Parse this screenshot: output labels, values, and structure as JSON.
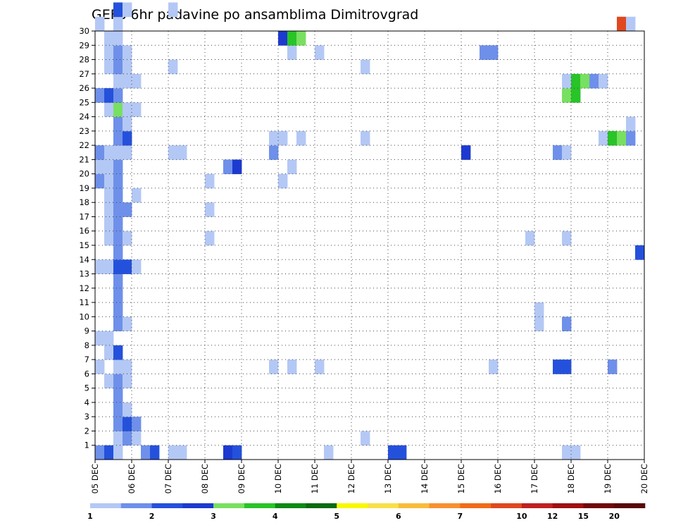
{
  "chart_data": {
    "type": "heatmap",
    "title": "GEFS 6hr padavine po ansamblima Dimitrovgrad",
    "y_ticks": [
      "1",
      "2",
      "3",
      "4",
      "5",
      "6",
      "7",
      "8",
      "9",
      "10",
      "11",
      "12",
      "13",
      "14",
      "15",
      "16",
      "17",
      "18",
      "19",
      "20",
      "21",
      "22",
      "23",
      "24",
      "25",
      "26",
      "27",
      "28",
      "29",
      "30"
    ],
    "x_ticks": [
      "05 DEC",
      "06 DEC",
      "07 DEC",
      "08 DEC",
      "09 DEC",
      "10 DEC",
      "11 DEC",
      "12 DEC",
      "13 DEC",
      "14 DEC",
      "15 DEC",
      "16 DEC",
      "17 DEC",
      "18 DEC",
      "19 DEC",
      "20 DEC"
    ],
    "x_steps_per_day": 4,
    "colorbar": {
      "colors": [
        "#b4c8f5",
        "#6e90ea",
        "#2451dc",
        "#1c3ad0",
        "#78e060",
        "#28c428",
        "#0d8a14",
        "#0b6a10",
        "#f8f800",
        "#f8e048",
        "#f8bc3c",
        "#f89030",
        "#f06c18",
        "#e04820",
        "#c02020",
        "#a01010",
        "#700808",
        "#580808"
      ],
      "labels": [
        "1",
        "2",
        "3",
        "4",
        "5",
        "6",
        "7",
        "10",
        "12",
        "15",
        "20"
      ],
      "label_positions": [
        0,
        2,
        4,
        6,
        8,
        10,
        12,
        14,
        15,
        16,
        17
      ]
    },
    "cells": [
      [
        0,
        0,
        4,
        1
      ],
      [
        0,
        1,
        4,
        2
      ],
      [
        0,
        2,
        4,
        0
      ],
      [
        0,
        5,
        4,
        1
      ],
      [
        0,
        6,
        4,
        2
      ],
      [
        0,
        8,
        4,
        0
      ],
      [
        0,
        9,
        4,
        0
      ],
      [
        0,
        14,
        4,
        3
      ],
      [
        0,
        15,
        4,
        2
      ],
      [
        0,
        25,
        4,
        0
      ],
      [
        0,
        32,
        4,
        2
      ],
      [
        0,
        33,
        4,
        2
      ],
      [
        0,
        51,
        4,
        0
      ],
      [
        0,
        52,
        4,
        0
      ],
      [
        1,
        2,
        4,
        0
      ],
      [
        1,
        3,
        4,
        1
      ],
      [
        1,
        4,
        4,
        0
      ],
      [
        1,
        29,
        4,
        0
      ],
      [
        2,
        2,
        4,
        1
      ],
      [
        2,
        3,
        4,
        2
      ],
      [
        2,
        4,
        4,
        1
      ],
      [
        3,
        2,
        4,
        1
      ],
      [
        3,
        3,
        4,
        0
      ],
      [
        4,
        2,
        4,
        1
      ],
      [
        5,
        1,
        4,
        0
      ],
      [
        5,
        2,
        4,
        1
      ],
      [
        5,
        3,
        4,
        0
      ],
      [
        6,
        0,
        4,
        0
      ],
      [
        6,
        2,
        4,
        0
      ],
      [
        6,
        3,
        4,
        0
      ],
      [
        6,
        19,
        4,
        0
      ],
      [
        6,
        21,
        4,
        0
      ],
      [
        6,
        24,
        4,
        0
      ],
      [
        6,
        43,
        4,
        0
      ],
      [
        6,
        50,
        4,
        2
      ],
      [
        6,
        51,
        4,
        2
      ],
      [
        6,
        56,
        4,
        1
      ],
      [
        7,
        1,
        4,
        0
      ],
      [
        7,
        2,
        4,
        2
      ],
      [
        8,
        0,
        4,
        0
      ],
      [
        8,
        1,
        4,
        0
      ],
      [
        9,
        2,
        4,
        1
      ],
      [
        9,
        3,
        4,
        0
      ],
      [
        9,
        48,
        4,
        0
      ],
      [
        9,
        51,
        4,
        1
      ],
      [
        10,
        2,
        4,
        1
      ],
      [
        10,
        48,
        4,
        0
      ],
      [
        11,
        2,
        4,
        1
      ],
      [
        12,
        2,
        4,
        1
      ],
      [
        13,
        0,
        4,
        0
      ],
      [
        13,
        1,
        4,
        0
      ],
      [
        13,
        2,
        4,
        2
      ],
      [
        13,
        3,
        4,
        2
      ],
      [
        13,
        4,
        4,
        0
      ],
      [
        14,
        2,
        4,
        1
      ],
      [
        14,
        59,
        4,
        2
      ],
      [
        15,
        1,
        4,
        0
      ],
      [
        15,
        2,
        4,
        1
      ],
      [
        15,
        3,
        4,
        0
      ],
      [
        15,
        12,
        4,
        0
      ],
      [
        15,
        47,
        4,
        0
      ],
      [
        15,
        51,
        4,
        0
      ],
      [
        16,
        1,
        4,
        0
      ],
      [
        16,
        2,
        4,
        1
      ],
      [
        17,
        1,
        4,
        0
      ],
      [
        17,
        2,
        4,
        1
      ],
      [
        17,
        3,
        4,
        1
      ],
      [
        17,
        12,
        4,
        0
      ],
      [
        18,
        1,
        4,
        0
      ],
      [
        18,
        2,
        4,
        1
      ],
      [
        18,
        4,
        4,
        0
      ],
      [
        19,
        0,
        4,
        1
      ],
      [
        19,
        1,
        4,
        0
      ],
      [
        19,
        2,
        4,
        1
      ],
      [
        19,
        12,
        4,
        0
      ],
      [
        19,
        20,
        4,
        0
      ],
      [
        20,
        0,
        4,
        0
      ],
      [
        20,
        1,
        4,
        0
      ],
      [
        20,
        2,
        4,
        1
      ],
      [
        20,
        14,
        4,
        1
      ],
      [
        20,
        15,
        4,
        3
      ],
      [
        20,
        21,
        4,
        0
      ],
      [
        21,
        0,
        4,
        1
      ],
      [
        21,
        1,
        4,
        0
      ],
      [
        21,
        2,
        4,
        0
      ],
      [
        21,
        3,
        4,
        0
      ],
      [
        21,
        8,
        4,
        0
      ],
      [
        21,
        9,
        4,
        0
      ],
      [
        21,
        19,
        4,
        1
      ],
      [
        21,
        40,
        4,
        3
      ],
      [
        21,
        50,
        4,
        1
      ],
      [
        21,
        51,
        4,
        0
      ],
      [
        22,
        2,
        4,
        1
      ],
      [
        22,
        3,
        4,
        2
      ],
      [
        22,
        19,
        4,
        0
      ],
      [
        22,
        20,
        4,
        0
      ],
      [
        22,
        22,
        4,
        0
      ],
      [
        22,
        29,
        4,
        0
      ],
      [
        22,
        55,
        4,
        0
      ],
      [
        22,
        56,
        4,
        5
      ],
      [
        22,
        57,
        4,
        4
      ],
      [
        22,
        58,
        4,
        1
      ],
      [
        23,
        2,
        4,
        1
      ],
      [
        23,
        3,
        4,
        0
      ],
      [
        23,
        58,
        4,
        0
      ],
      [
        24,
        1,
        4,
        0
      ],
      [
        24,
        2,
        4,
        4
      ],
      [
        24,
        3,
        4,
        0
      ],
      [
        24,
        4,
        4,
        0
      ],
      [
        25,
        0,
        4,
        1
      ],
      [
        25,
        1,
        4,
        2
      ],
      [
        25,
        2,
        4,
        1
      ],
      [
        25,
        51,
        4,
        4
      ],
      [
        25,
        52,
        4,
        5
      ],
      [
        26,
        2,
        4,
        0
      ],
      [
        26,
        3,
        4,
        0
      ],
      [
        26,
        4,
        4,
        0
      ],
      [
        26,
        51,
        4,
        0
      ],
      [
        26,
        52,
        4,
        5
      ],
      [
        26,
        53,
        4,
        4
      ],
      [
        26,
        54,
        4,
        1
      ],
      [
        26,
        55,
        4,
        0
      ],
      [
        27,
        1,
        4,
        0
      ],
      [
        27,
        2,
        4,
        1
      ],
      [
        27,
        3,
        4,
        0
      ],
      [
        27,
        8,
        4,
        0
      ],
      [
        27,
        29,
        4,
        0
      ],
      [
        28,
        1,
        4,
        0
      ],
      [
        28,
        2,
        4,
        1
      ],
      [
        28,
        3,
        4,
        0
      ],
      [
        28,
        21,
        4,
        0
      ],
      [
        28,
        24,
        4,
        0
      ],
      [
        28,
        42,
        4,
        1
      ],
      [
        28,
        43,
        4,
        1
      ],
      [
        29,
        1,
        4,
        0
      ],
      [
        29,
        2,
        4,
        0
      ],
      [
        29,
        20,
        4,
        3
      ],
      [
        29,
        21,
        4,
        5
      ],
      [
        29,
        22,
        4,
        4
      ],
      [
        30,
        0,
        4,
        0
      ],
      [
        30,
        2,
        4,
        0
      ],
      [
        30,
        57,
        4,
        13
      ],
      [
        30,
        58,
        4,
        0
      ],
      [
        31,
        2,
        4,
        2
      ],
      [
        31,
        3,
        4,
        0
      ],
      [
        31,
        8,
        4,
        0
      ]
    ]
  }
}
